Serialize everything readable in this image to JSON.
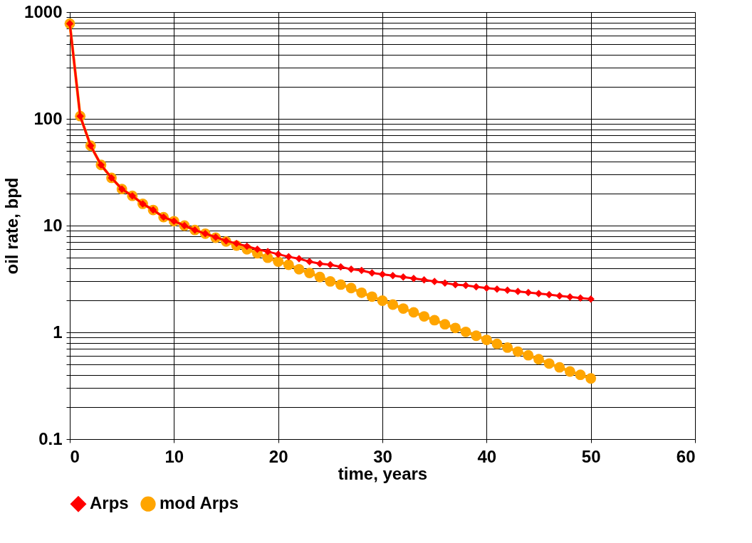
{
  "chart_data": {
    "type": "line",
    "xlabel": "time, years",
    "ylabel": "oil rate, bpd",
    "log": "y",
    "grid": true,
    "legend": "bottom",
    "xlim": [
      0,
      60
    ],
    "xticks": [
      0,
      10,
      20,
      30,
      40,
      50,
      60
    ],
    "ylim": [
      0.1,
      1000
    ],
    "yticks": [
      0.1,
      {
        "value": 0.2,
        "label": null
      },
      {
        "value": 0.3,
        "label": null
      },
      {
        "value": 0.4,
        "label": null
      },
      {
        "value": 0.5,
        "label": null
      },
      {
        "value": 0.6,
        "label": null
      },
      {
        "value": 0.7,
        "label": null
      },
      {
        "value": 0.8,
        "label": null
      },
      {
        "value": 0.9,
        "label": null
      },
      1,
      {
        "value": 2,
        "label": null
      },
      {
        "value": 3,
        "label": null
      },
      {
        "value": 4,
        "label": null
      },
      {
        "value": 5,
        "label": null
      },
      {
        "value": 6,
        "label": null
      },
      {
        "value": 7,
        "label": null
      },
      {
        "value": 8,
        "label": null
      },
      {
        "value": 9,
        "label": null
      },
      10,
      {
        "value": 20,
        "label": null
      },
      {
        "value": 30,
        "label": null
      },
      {
        "value": 40,
        "label": null
      },
      {
        "value": 50,
        "label": null
      },
      {
        "value": 60,
        "label": null
      },
      {
        "value": 70,
        "label": null
      },
      {
        "value": 80,
        "label": null
      },
      {
        "value": 90,
        "label": null
      },
      100,
      {
        "value": 200,
        "label": null
      },
      {
        "value": 300,
        "label": null
      },
      {
        "value": 400,
        "label": null
      },
      {
        "value": 500,
        "label": null
      },
      {
        "value": 600,
        "label": null
      },
      {
        "value": 700,
        "label": null
      },
      {
        "value": 800,
        "label": null
      },
      {
        "value": 900,
        "label": null
      },
      1000
    ],
    "x": [
      0,
      1,
      2,
      3,
      4,
      5,
      6,
      7,
      8,
      9,
      10,
      11,
      12,
      13,
      14,
      15,
      16,
      17,
      18,
      19,
      20,
      21,
      22,
      23,
      24,
      25,
      26,
      27,
      28,
      29,
      30,
      31,
      32,
      33,
      34,
      35,
      36,
      37,
      38,
      39,
      40,
      41,
      42,
      43,
      44,
      45,
      46,
      47,
      48,
      49,
      50
    ],
    "series": [
      {
        "name": "Arps",
        "color": "#ff0000",
        "marker": "diamond",
        "values": [
          780,
          106,
          56,
          37,
          28,
          22,
          19,
          16,
          14,
          12,
          11,
          10,
          9.1,
          8.4,
          7.8,
          7.2,
          6.8,
          6.4,
          6.0,
          5.7,
          5.4,
          5.1,
          4.9,
          4.6,
          4.4,
          4.3,
          4.1,
          3.9,
          3.8,
          3.6,
          3.5,
          3.4,
          3.3,
          3.2,
          3.1,
          3.0,
          2.9,
          2.8,
          2.75,
          2.67,
          2.6,
          2.54,
          2.48,
          2.42,
          2.36,
          2.31,
          2.26,
          2.2,
          2.15,
          2.1,
          2.05
        ]
      },
      {
        "name": "mod Arps",
        "color": "#ffa500",
        "marker": "circle",
        "values": [
          780,
          106,
          56,
          37,
          28,
          22,
          19,
          16,
          14,
          12,
          11,
          10,
          9.1,
          8.4,
          7.7,
          7.1,
          6.5,
          6.0,
          5.5,
          5.0,
          4.6,
          4.3,
          3.9,
          3.6,
          3.3,
          3.0,
          2.8,
          2.6,
          2.35,
          2.16,
          1.98,
          1.82,
          1.67,
          1.54,
          1.41,
          1.3,
          1.19,
          1.1,
          1.01,
          0.93,
          0.85,
          0.78,
          0.72,
          0.66,
          0.61,
          0.56,
          0.51,
          0.47,
          0.43,
          0.4,
          0.37
        ]
      }
    ]
  }
}
